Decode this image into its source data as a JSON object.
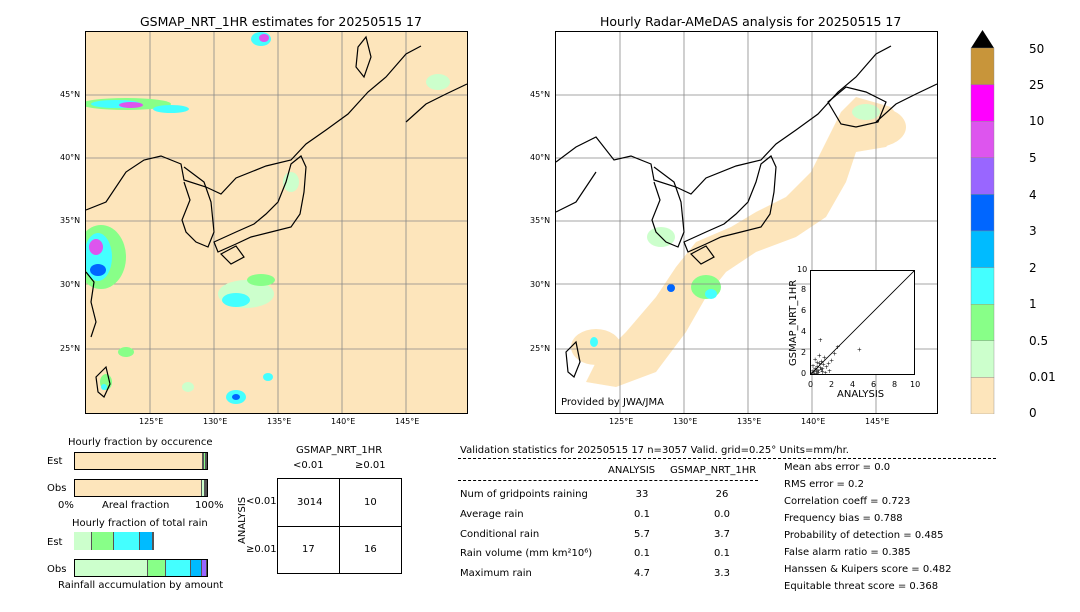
{
  "left_map": {
    "title": "GSMAP_NRT_1HR estimates for 20250515 17",
    "lat_labels": [
      "45°N",
      "40°N",
      "35°N",
      "30°N",
      "25°N"
    ],
    "lon_labels": [
      "125°E",
      "130°E",
      "135°E",
      "140°E",
      "145°E"
    ]
  },
  "right_map": {
    "title": "Hourly Radar-AMeDAS analysis for 20250515 17",
    "lat_labels": [
      "45°N",
      "40°N",
      "35°N",
      "30°N",
      "25°N"
    ],
    "lon_labels": [
      "125°E",
      "130°E",
      "135°E",
      "140°E",
      "145°E"
    ],
    "provider": "Provided by JWA/JMA"
  },
  "colorbar": {
    "ticks": [
      "50",
      "25",
      "10",
      "5",
      "4",
      "3",
      "2",
      "1",
      "0.5",
      "0.01",
      "0"
    ],
    "colors": [
      "#c8953a",
      "#ff00ff",
      "#dd55ee",
      "#9966ff",
      "#0066ff",
      "#00bbff",
      "#44ffff",
      "#88ff88",
      "#ccffcc",
      "#fde5bb"
    ]
  },
  "fraction_occurrence": {
    "title": "Hourly fraction by occurence",
    "row_labels": [
      "Est",
      "Obs"
    ],
    "axis_left": "0%",
    "axis_mid": "Areal fraction",
    "axis_right": "100%"
  },
  "fraction_total": {
    "title": "Hourly fraction of total rain",
    "row_labels": [
      "Est",
      "Obs"
    ],
    "footer": "Rainfall accumulation by amount"
  },
  "contingency": {
    "col_header": "GSMAP_NRT_1HR",
    "col_labels": [
      "<0.01",
      "≥0.01"
    ],
    "row_header": "ANALYSIS",
    "row_labels": [
      "<0.01",
      "≥0.01"
    ],
    "cells": [
      "3014",
      "10",
      "17",
      "16"
    ]
  },
  "validation": {
    "header": "Validation statistics for 20250515 17  n=3057 Valid. grid=0.25° Units=mm/hr.",
    "col_analysis": "ANALYSIS",
    "col_gsmap": "GSMAP_NRT_1HR",
    "rows": [
      {
        "label": "Num of gridpoints raining",
        "analysis": "33",
        "gsmap": "26"
      },
      {
        "label": "Average rain",
        "analysis": "0.1",
        "gsmap": "0.0"
      },
      {
        "label": "Conditional rain",
        "analysis": "5.7",
        "gsmap": "3.7"
      },
      {
        "label": "Rain volume (mm km²10⁶)",
        "analysis": "0.1",
        "gsmap": "0.1"
      },
      {
        "label": "Maximum rain",
        "analysis": "4.7",
        "gsmap": "3.3"
      }
    ],
    "scores": [
      "Mean abs error =    0.0",
      "RMS error =    0.2",
      "Correlation coeff =  0.723",
      "Frequency bias =  0.788",
      "Probability of detection =  0.485",
      "False alarm ratio =  0.385",
      "Hanssen & Kuipers score =  0.482",
      "Equitable threat score =  0.368"
    ]
  },
  "chart_data": [
    {
      "type": "scatter",
      "title": "",
      "xlabel": "ANALYSIS",
      "ylabel": "GSMAP_NRT_1HR",
      "xlim": [
        0,
        10
      ],
      "ylim": [
        0,
        10
      ],
      "x_ticks": [
        "0",
        "2",
        "4",
        "6",
        "8",
        "10"
      ],
      "y_ticks": [
        "0",
        "2",
        "4",
        "6",
        "8",
        "10"
      ],
      "x": [
        0.1,
        0.2,
        0.3,
        0.4,
        0.5,
        0.6,
        0.7,
        0.8,
        0.9,
        1.0,
        1.1,
        1.2,
        1.3,
        0.2,
        0.4,
        0.6,
        0.8,
        1.0,
        1.5,
        1.8,
        2.0,
        2.3,
        2.6,
        4.7,
        0.3,
        0.5,
        0.7,
        1.1,
        1.4,
        0.9,
        0.6,
        1.7
      ],
      "y": [
        0.1,
        0.3,
        0.2,
        0.5,
        0.4,
        0.7,
        0.3,
        1.0,
        0.6,
        1.2,
        0.5,
        0.9,
        1.6,
        0.8,
        1.4,
        0.2,
        1.8,
        0.4,
        0.7,
        0.3,
        1.3,
        2.0,
        2.6,
        2.4,
        0.0,
        0.0,
        0.1,
        0.2,
        0.1,
        3.3,
        1.1,
        1.0
      ]
    },
    {
      "type": "bar",
      "title": "Hourly fraction by occurence",
      "categories": [
        "Est",
        "Obs"
      ],
      "series": [
        {
          "values": [
            0.969,
            0.962
          ]
        },
        {
          "values": [
            0.008,
            0.022
          ]
        },
        {
          "values": [
            0.015,
            0.008
          ]
        },
        {
          "values": [
            0.008,
            0.008
          ]
        }
      ]
    },
    {
      "type": "bar",
      "title": "Hourly fraction of total rain",
      "categories": [
        "Est",
        "Obs"
      ],
      "series": [
        {
          "values": [
            0.14,
            0.55
          ]
        },
        {
          "values": [
            0.16,
            0.14
          ]
        },
        {
          "values": [
            0.2,
            0.19
          ]
        },
        {
          "values": [
            0.1,
            0.08
          ]
        },
        {
          "values": [
            0.0,
            0.04
          ]
        }
      ]
    }
  ]
}
